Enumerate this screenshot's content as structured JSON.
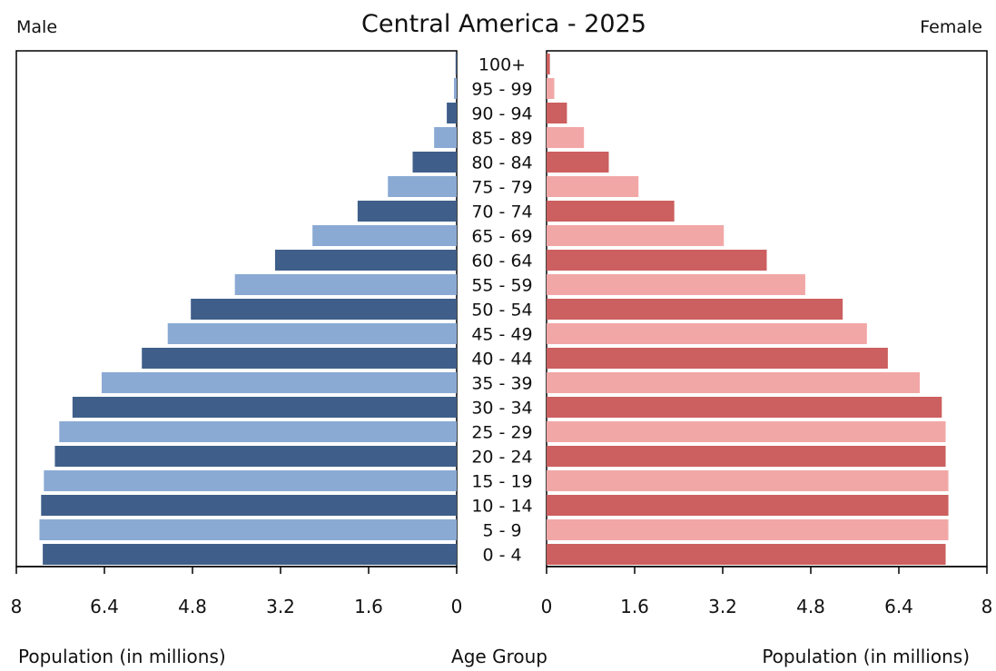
{
  "chart_data": {
    "type": "bar",
    "title": "Central America - 2025",
    "left_label": "Male",
    "right_label": "Female",
    "center_label": "Age Group",
    "xlabel_left": "Population (in millions)",
    "xlabel_right": "Population (in millions)",
    "xlim": [
      0,
      8
    ],
    "ticks": [
      0,
      1.6,
      3.2,
      4.8,
      6.4,
      8
    ],
    "tick_labels": [
      "0",
      "1.6",
      "3.2",
      "4.8",
      "6.4",
      "8"
    ],
    "categories": [
      "0 - 4",
      "5 - 9",
      "10 - 14",
      "15 - 19",
      "20 - 24",
      "25 - 29",
      "30 - 34",
      "35 - 39",
      "40 - 44",
      "45 - 49",
      "50 - 54",
      "55 - 59",
      "60 - 64",
      "65 - 69",
      "70 - 74",
      "75 - 79",
      "80 - 84",
      "85 - 89",
      "90 - 94",
      "95 - 99",
      "100+"
    ],
    "series": [
      {
        "name": "Male",
        "values": [
          7.52,
          7.58,
          7.55,
          7.5,
          7.3,
          7.22,
          6.98,
          6.45,
          5.72,
          5.25,
          4.83,
          4.03,
          3.3,
          2.62,
          1.8,
          1.25,
          0.8,
          0.41,
          0.18,
          0.05,
          0.02
        ]
      },
      {
        "name": "Female",
        "values": [
          7.25,
          7.3,
          7.3,
          7.3,
          7.25,
          7.25,
          7.18,
          6.78,
          6.2,
          5.82,
          5.38,
          4.7,
          4.0,
          3.22,
          2.32,
          1.67,
          1.13,
          0.68,
          0.37,
          0.14,
          0.06
        ]
      }
    ],
    "colors": {
      "male_dark": "#3f5f8a",
      "male_light": "#8aaad4",
      "female_dark": "#cc5f5f",
      "female_light": "#f2a7a7",
      "axis": "#000000"
    }
  }
}
